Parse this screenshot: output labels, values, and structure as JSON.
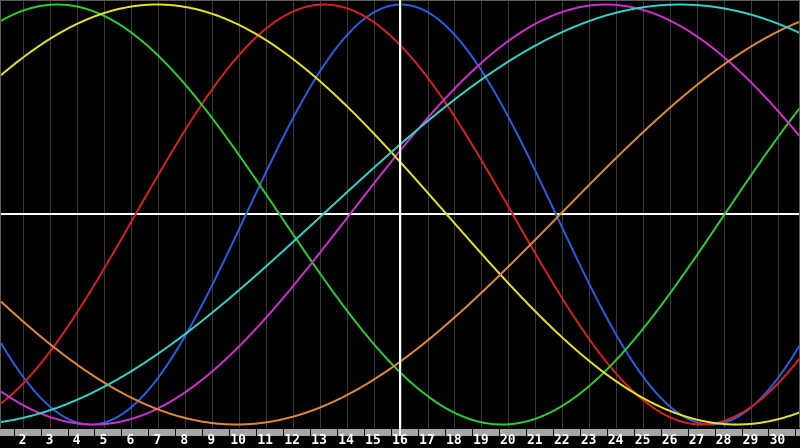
{
  "chart_data": {
    "type": "line",
    "description": "Seven sine cycles plotted over days of a month (biorhythm-style chart)",
    "x_axis": {
      "ticks": [
        2,
        3,
        4,
        5,
        6,
        7,
        8,
        9,
        10,
        11,
        12,
        13,
        14,
        15,
        16,
        17,
        18,
        19,
        20,
        21,
        22,
        23,
        24,
        25,
        26,
        27,
        28,
        29,
        30
      ],
      "visible_range": [
        1.16,
        30.84
      ],
      "today_marker_day": 16,
      "grid": "vertical line at every day"
    },
    "y_axis": {
      "range": [
        -1,
        1
      ],
      "zero_line": true,
      "tick_labels": "none"
    },
    "legend": "none",
    "series": [
      {
        "name": "blue",
        "color": "#2a5ce0",
        "period_days": 23,
        "zero_crossing_up_day": 10.25,
        "amplitude": 1
      },
      {
        "name": "red",
        "color": "#d42222",
        "period_days": 28,
        "zero_crossing_up_day": 6.15,
        "amplitude": 1
      },
      {
        "name": "green",
        "color": "#2eca2e",
        "period_days": 33,
        "zero_crossing_up_day": 28.0,
        "amplitude": 1
      },
      {
        "name": "magenta",
        "color": "#cf2ecf",
        "period_days": 38,
        "zero_crossing_up_day": 14.1,
        "amplitude": 1
      },
      {
        "name": "yellow",
        "color": "#e2e22a",
        "period_days": 43,
        "zero_crossing_up_day": 39.2,
        "amplitude": 1
      },
      {
        "name": "orange",
        "color": "#e08a30",
        "period_days": 48,
        "zero_crossing_up_day": 21.9,
        "amplitude": 1
      },
      {
        "name": "cyan",
        "color": "#35cfc7",
        "period_days": 53,
        "zero_crossing_up_day": 13.1,
        "amplitude": 1
      }
    ]
  },
  "colors": {
    "background": "#000000",
    "gridline": "#3a3a3a",
    "plot_border": "#5c5c5c",
    "zero_line": "#ffffff",
    "today_line": "#ffffff",
    "axis_ruler": "#a6a6a6",
    "axis_tick": "#101010",
    "label_text": "#ffffff"
  }
}
